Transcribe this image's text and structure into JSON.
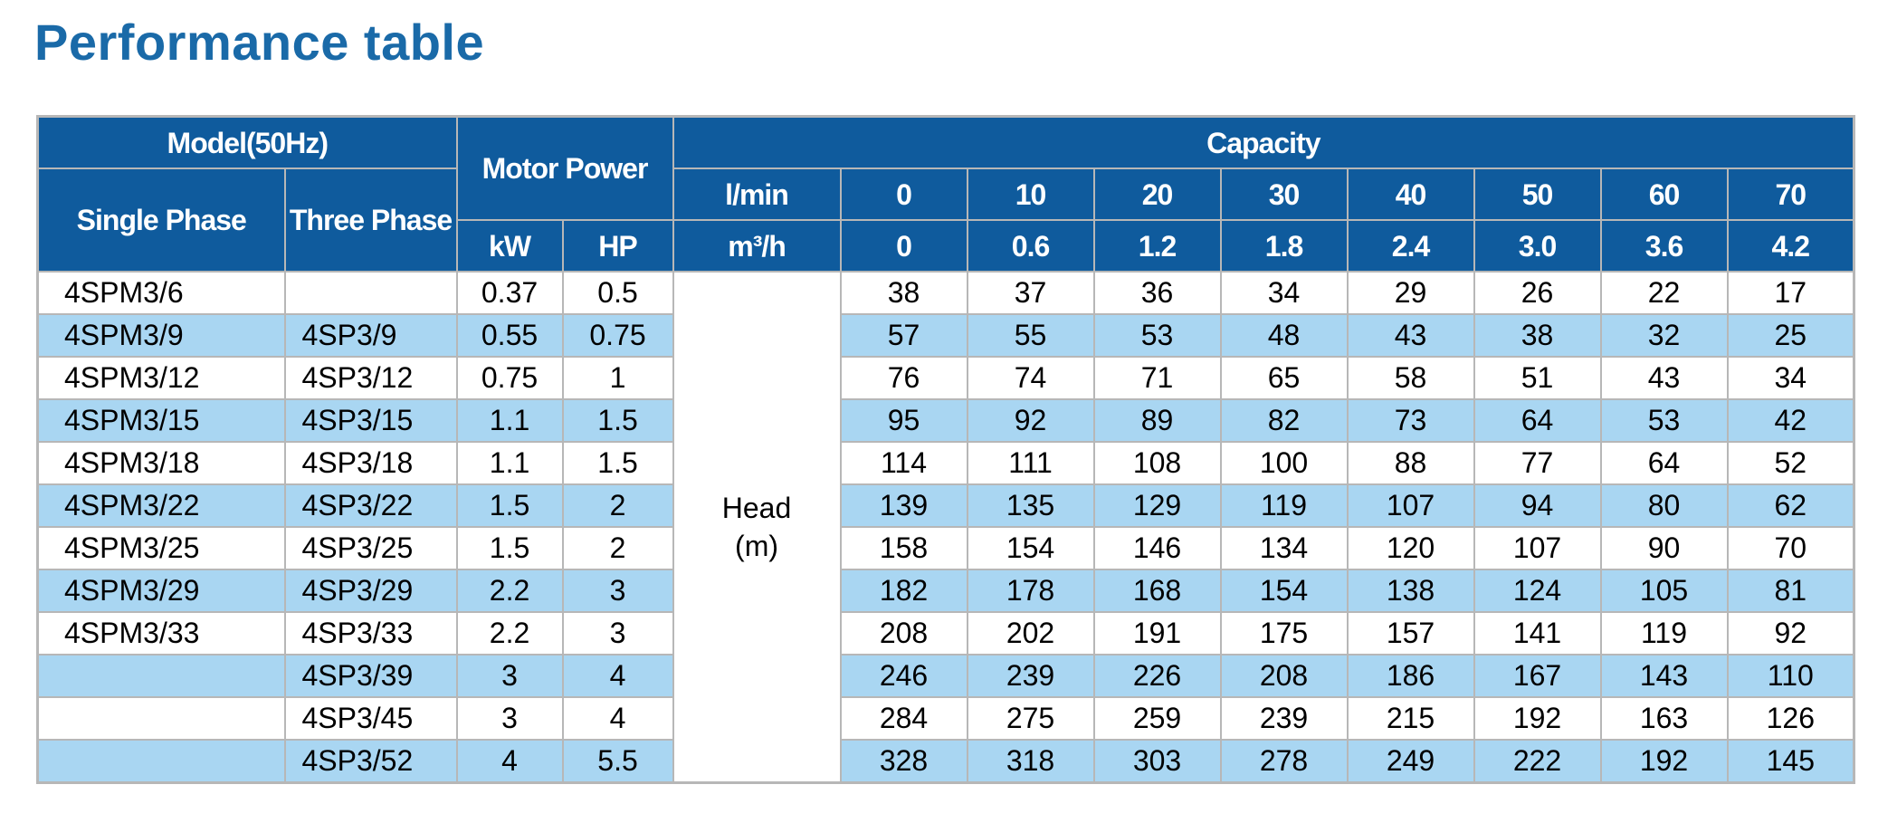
{
  "title": "Performance table",
  "header": {
    "model": "Model(50Hz)",
    "single_phase": "Single Phase",
    "three_phase": "Three Phase",
    "motor_power": "Motor Power",
    "kw": "kW",
    "hp": "HP",
    "capacity": "Capacity",
    "lmin_label": "l/min",
    "m3h_label": "m³/h",
    "lmin": [
      "0",
      "10",
      "20",
      "30",
      "40",
      "50",
      "60",
      "70"
    ],
    "m3h": [
      "0",
      "0.6",
      "1.2",
      "1.8",
      "2.4",
      "3.0",
      "3.6",
      "4.2"
    ]
  },
  "head_label": "Head",
  "head_unit": "(m)",
  "rows": [
    {
      "single": "4SPM3/6",
      "three": "",
      "kw": "0.37",
      "hp": "0.5",
      "heads": [
        "38",
        "37",
        "36",
        "34",
        "29",
        "26",
        "22",
        "17"
      ]
    },
    {
      "single": "4SPM3/9",
      "three": "4SP3/9",
      "kw": "0.55",
      "hp": "0.75",
      "heads": [
        "57",
        "55",
        "53",
        "48",
        "43",
        "38",
        "32",
        "25"
      ]
    },
    {
      "single": "4SPM3/12",
      "three": "4SP3/12",
      "kw": "0.75",
      "hp": "1",
      "heads": [
        "76",
        "74",
        "71",
        "65",
        "58",
        "51",
        "43",
        "34"
      ]
    },
    {
      "single": "4SPM3/15",
      "three": "4SP3/15",
      "kw": "1.1",
      "hp": "1.5",
      "heads": [
        "95",
        "92",
        "89",
        "82",
        "73",
        "64",
        "53",
        "42"
      ]
    },
    {
      "single": "4SPM3/18",
      "three": "4SP3/18",
      "kw": "1.1",
      "hp": "1.5",
      "heads": [
        "114",
        "111",
        "108",
        "100",
        "88",
        "77",
        "64",
        "52"
      ]
    },
    {
      "single": "4SPM3/22",
      "three": "4SP3/22",
      "kw": "1.5",
      "hp": "2",
      "heads": [
        "139",
        "135",
        "129",
        "119",
        "107",
        "94",
        "80",
        "62"
      ]
    },
    {
      "single": "4SPM3/25",
      "three": "4SP3/25",
      "kw": "1.5",
      "hp": "2",
      "heads": [
        "158",
        "154",
        "146",
        "134",
        "120",
        "107",
        "90",
        "70"
      ]
    },
    {
      "single": "4SPM3/29",
      "three": "4SP3/29",
      "kw": "2.2",
      "hp": "3",
      "heads": [
        "182",
        "178",
        "168",
        "154",
        "138",
        "124",
        "105",
        "81"
      ]
    },
    {
      "single": "4SPM3/33",
      "three": "4SP3/33",
      "kw": "2.2",
      "hp": "3",
      "heads": [
        "208",
        "202",
        "191",
        "175",
        "157",
        "141",
        "119",
        "92"
      ]
    },
    {
      "single": "",
      "three": "4SP3/39",
      "kw": "3",
      "hp": "4",
      "heads": [
        "246",
        "239",
        "226",
        "208",
        "186",
        "167",
        "143",
        "110"
      ]
    },
    {
      "single": "",
      "three": "4SP3/45",
      "kw": "3",
      "hp": "4",
      "heads": [
        "284",
        "275",
        "259",
        "239",
        "215",
        "192",
        "163",
        "126"
      ]
    },
    {
      "single": "",
      "three": "4SP3/52",
      "kw": "4",
      "hp": "5.5",
      "heads": [
        "328",
        "318",
        "303",
        "278",
        "249",
        "222",
        "192",
        "145"
      ]
    }
  ],
  "colors": {
    "title": "#1a6aa8",
    "header_bg": "#0f5b9d",
    "row_stripe": "#a9d6f2",
    "border": "#b7b7b7"
  }
}
